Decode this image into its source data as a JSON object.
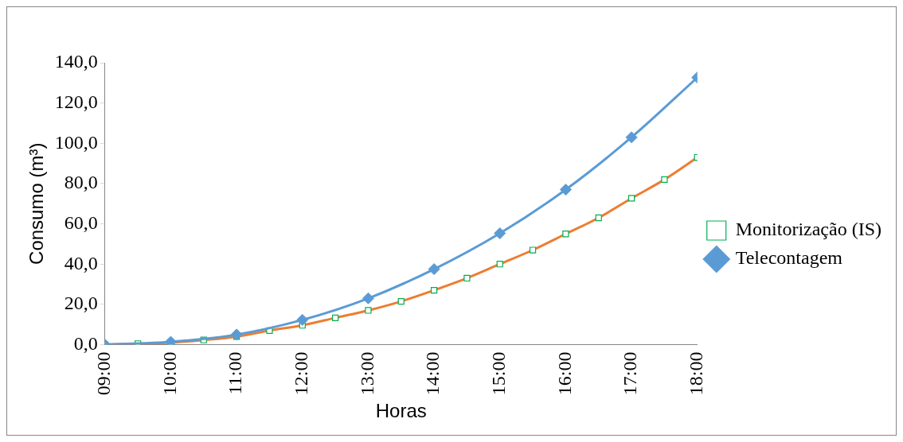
{
  "chart_data": {
    "type": "line",
    "xlabel": "Horas",
    "ylabel": "Consumo (m³)",
    "xlim": [
      9,
      18
    ],
    "xticks": [
      {
        "value": 9,
        "label": "09:00"
      },
      {
        "value": 10,
        "label": "10:00"
      },
      {
        "value": 11,
        "label": "11:00"
      },
      {
        "value": 12,
        "label": "12:00"
      },
      {
        "value": 13,
        "label": "13:00"
      },
      {
        "value": 14,
        "label": "14:00"
      },
      {
        "value": 15,
        "label": "15:00"
      },
      {
        "value": 16,
        "label": "16:00"
      },
      {
        "value": 17,
        "label": "17:00"
      },
      {
        "value": 18,
        "label": "18:00"
      }
    ],
    "ylim": [
      0,
      140
    ],
    "yticks": [
      {
        "value": 0,
        "label": "0,0"
      },
      {
        "value": 20,
        "label": "20,0"
      },
      {
        "value": 40,
        "label": "40,0"
      },
      {
        "value": 60,
        "label": "60,0"
      },
      {
        "value": 80,
        "label": "80,0"
      },
      {
        "value": 100,
        "label": "100,0"
      },
      {
        "value": 120,
        "label": "120,0"
      },
      {
        "value": 140,
        "label": "140,0"
      }
    ],
    "grid": false,
    "legend": "right",
    "series": [
      {
        "name": "Monitorização (IS)",
        "color": "#ed7d31",
        "marker": "square",
        "x": [
          9,
          9.5,
          10,
          10.5,
          11,
          11.5,
          12,
          12.5,
          13,
          13.5,
          14,
          14.5,
          15,
          15.5,
          16,
          16.5,
          17,
          17.5,
          18
        ],
        "values": [
          0,
          0.5,
          1,
          2.3,
          4,
          7,
          9.6,
          13.3,
          17,
          21.5,
          27,
          33,
          40,
          47,
          55,
          63,
          72.7,
          82,
          93
        ]
      },
      {
        "name": "Telecontagem",
        "color": "#5b9bd5",
        "marker": "diamond",
        "x": [
          9,
          10,
          11,
          12,
          13,
          14,
          15,
          16,
          17,
          18
        ],
        "values": [
          0,
          1.4,
          5,
          12.3,
          23,
          37.5,
          55.3,
          77,
          103,
          132.7
        ]
      }
    ]
  }
}
